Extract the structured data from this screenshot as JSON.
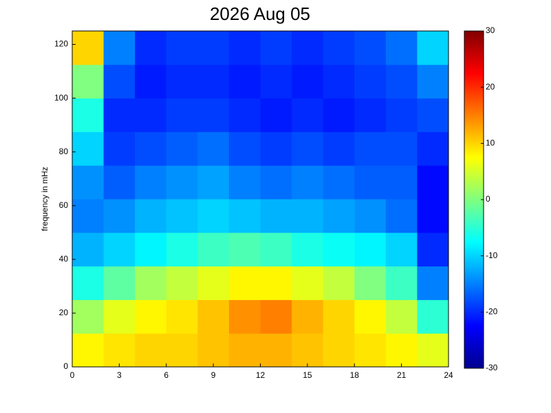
{
  "chart_data": {
    "type": "heatmap",
    "title": "2026 Aug 05",
    "ylabel": "frequency in mHz",
    "colormap": "jet",
    "x": [
      1,
      3,
      5,
      7,
      9,
      11,
      13,
      15,
      17,
      19,
      21,
      23
    ],
    "y": [
      6.25,
      18.75,
      31.25,
      43.75,
      56.25,
      68.75,
      81.25,
      93.75,
      106.25,
      118.75
    ],
    "values": [
      [
        8,
        9,
        10,
        10,
        11,
        12,
        12,
        11,
        10,
        9,
        8,
        6
      ],
      [
        2,
        6,
        8,
        9,
        11,
        14,
        15,
        12,
        10,
        8,
        4,
        -5
      ],
      [
        -6,
        -2,
        2,
        4,
        6,
        8,
        8,
        6,
        4,
        0,
        -4,
        -15
      ],
      [
        -12,
        -10,
        -8,
        -6,
        -4,
        -3,
        -4,
        -6,
        -7,
        -8,
        -10,
        -20
      ],
      [
        -15,
        -14,
        -12,
        -11,
        -10,
        -11,
        -12,
        -12,
        -13,
        -14,
        -16,
        -22
      ],
      [
        -14,
        -17,
        -15,
        -14,
        -13,
        -15,
        -16,
        -15,
        -16,
        -17,
        -17,
        -22
      ],
      [
        -10,
        -19,
        -18,
        -17,
        -16,
        -18,
        -19,
        -18,
        -19,
        -18,
        -18,
        -20
      ],
      [
        -6,
        -20,
        -20,
        -19,
        -19,
        -20,
        -21,
        -20,
        -21,
        -20,
        -19,
        -18
      ],
      [
        0,
        -18,
        -21,
        -20,
        -20,
        -21,
        -20,
        -21,
        -20,
        -19,
        -18,
        -15
      ],
      [
        10,
        -15,
        -20,
        -19,
        -19,
        -20,
        -19,
        -20,
        -19,
        -18,
        -16,
        -10
      ]
    ],
    "xlim": [
      0,
      24
    ],
    "xticks": [
      0,
      3,
      6,
      9,
      12,
      15,
      18,
      21,
      24
    ],
    "ylim": [
      0,
      125
    ],
    "yticks": [
      0,
      20,
      40,
      60,
      80,
      100,
      120
    ],
    "clim": [
      -30,
      30
    ],
    "cticks": [
      -30,
      -20,
      -10,
      0,
      10,
      20,
      30
    ]
  }
}
